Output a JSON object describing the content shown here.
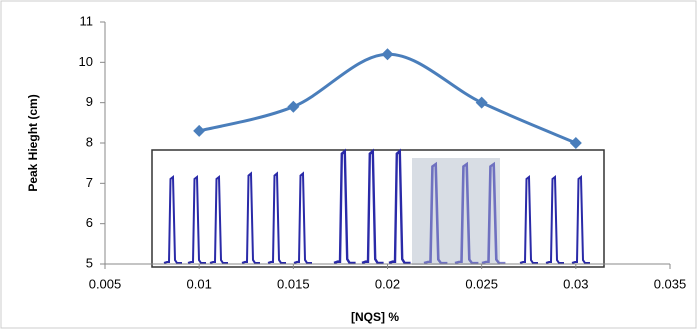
{
  "chart_data": {
    "type": "line",
    "xlabel": "[NQS] %",
    "ylabel": "Peak Hieght (cm)",
    "x": [
      0.01,
      0.015,
      0.02,
      0.025,
      0.03
    ],
    "values": [
      8.3,
      8.9,
      10.2,
      9.0,
      8.0
    ],
    "color": "#4a7ebb",
    "xlim": [
      0.005,
      0.035
    ],
    "xticks": [
      0.005,
      0.01,
      0.015,
      0.02,
      0.025,
      0.03,
      0.035
    ],
    "ylim": [
      5,
      11
    ],
    "yticks": [
      5,
      6,
      7,
      8,
      9,
      10,
      11
    ],
    "smooth": true,
    "marker": "diamond"
  }
}
